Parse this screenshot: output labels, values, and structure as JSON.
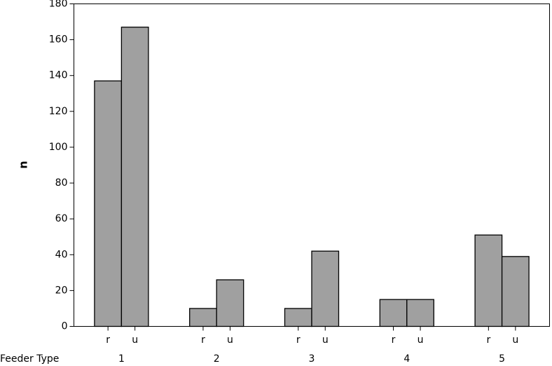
{
  "chart_data": {
    "type": "grouped_bar",
    "xlabel": "Feeder Type",
    "ylabel": "n",
    "categories": [
      "1",
      "2",
      "3",
      "4",
      "5"
    ],
    "series": [
      {
        "name": "r",
        "color": "#a0a0a0",
        "values": [
          137,
          10,
          10,
          15,
          51
        ]
      },
      {
        "name": "u",
        "color": "#a0a0a0",
        "values": [
          167,
          26,
          42,
          15,
          39
        ]
      }
    ],
    "ylim": [
      0,
      180
    ],
    "yticks": [
      0,
      20,
      40,
      60,
      80,
      100,
      120,
      140,
      160,
      180
    ],
    "grid": false
  }
}
